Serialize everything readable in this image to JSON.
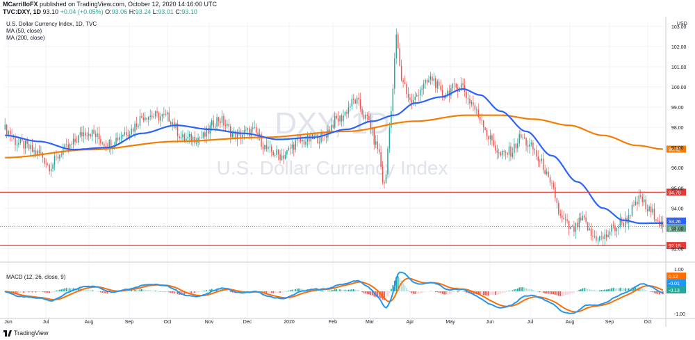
{
  "header": {
    "author": "MCarrilloFX",
    "published": "published on TradingView.com, October 12, 2020 14:16:00 UTC",
    "symbol_line": "TVC:DXY, 1D",
    "last": "93.10",
    "change": "+0.04 (+0.05%)",
    "o_label": "O:",
    "o": "93.06",
    "h_label": "H:",
    "h": "93.24",
    "l_label": "L:",
    "l": "93.01",
    "c_label": "C:",
    "c": "93.10"
  },
  "legend": {
    "title": "U.S. Dollar Currency Index, 1D, TVC",
    "ma50": "MA (50, close)",
    "ma200": "MA (200, close)"
  },
  "watermark": {
    "symbol": "DXY, 1D",
    "name": "U.S. Dollar Currency Index"
  },
  "macd_legend": "MACD (12, 26, close, 9)",
  "footer": {
    "brand": "TradingView"
  },
  "colors": {
    "up": "#26a69a",
    "down": "#ef5350",
    "ma50": "#2962ff",
    "ma200": "#f57c00",
    "level": "#e53935",
    "macd": "#2196f3",
    "signal": "#ff6d00"
  },
  "chart_data": {
    "type": "candlestick",
    "currency": "USD",
    "y_ticks": [
      "103.00",
      "102.00",
      "101.00",
      "100.00",
      "99.00",
      "98.00",
      "97.00",
      "96.00",
      "95.00",
      "94.00",
      "93.00",
      "92.00"
    ],
    "ylim": [
      91.5,
      103.2
    ],
    "x_ticks": [
      "Jun",
      "Jul",
      "Aug",
      "Sep",
      "Oct",
      "Nov",
      "Dec",
      "2020",
      "Feb",
      "Mar",
      "Apr",
      "May",
      "Jun",
      "Jul",
      "Aug",
      "Sep",
      "Oct"
    ],
    "price_anchors": [
      [
        0,
        97.9
      ],
      [
        8,
        97.2
      ],
      [
        20,
        96.7
      ],
      [
        26,
        96.1
      ],
      [
        35,
        96.9
      ],
      [
        48,
        97.8
      ],
      [
        60,
        97.2
      ],
      [
        72,
        97.8
      ],
      [
        82,
        98.6
      ],
      [
        95,
        98.5
      ],
      [
        105,
        97.4
      ],
      [
        115,
        97.5
      ],
      [
        125,
        98.4
      ],
      [
        135,
        97.6
      ],
      [
        145,
        97.8
      ],
      [
        155,
        96.8
      ],
      [
        162,
        96.6
      ],
      [
        172,
        97.3
      ],
      [
        185,
        97.5
      ],
      [
        195,
        98.4
      ],
      [
        205,
        99.3
      ],
      [
        212,
        98.4
      ],
      [
        218,
        97.0
      ],
      [
        222,
        95.1
      ],
      [
        226,
        98.8
      ],
      [
        229,
        102.4
      ],
      [
        232,
        100.4
      ],
      [
        238,
        99.2
      ],
      [
        244,
        100.0
      ],
      [
        250,
        100.4
      ],
      [
        256,
        99.6
      ],
      [
        262,
        99.9
      ],
      [
        267,
        100.1
      ],
      [
        272,
        99.3
      ],
      [
        278,
        98.5
      ],
      [
        284,
        97.4
      ],
      [
        290,
        96.6
      ],
      [
        296,
        96.8
      ],
      [
        302,
        97.5
      ],
      [
        308,
        97.0
      ],
      [
        314,
        96.2
      ],
      [
        320,
        95.0
      ],
      [
        326,
        93.4
      ],
      [
        332,
        92.9
      ],
      [
        338,
        93.4
      ],
      [
        344,
        92.6
      ],
      [
        350,
        92.5
      ],
      [
        356,
        93.0
      ],
      [
        362,
        93.3
      ],
      [
        368,
        94.0
      ],
      [
        372,
        94.5
      ],
      [
        376,
        93.9
      ],
      [
        380,
        93.7
      ],
      [
        385,
        93.1
      ]
    ],
    "ma50_anchors": [
      [
        0,
        97.6
      ],
      [
        20,
        97.3
      ],
      [
        40,
        96.9
      ],
      [
        60,
        97.0
      ],
      [
        80,
        97.7
      ],
      [
        100,
        98.1
      ],
      [
        120,
        97.9
      ],
      [
        140,
        97.7
      ],
      [
        160,
        97.4
      ],
      [
        180,
        97.5
      ],
      [
        200,
        97.9
      ],
      [
        215,
        98.3
      ],
      [
        228,
        98.6
      ],
      [
        240,
        99.2
      ],
      [
        255,
        99.5
      ],
      [
        268,
        99.9
      ],
      [
        278,
        99.6
      ],
      [
        290,
        98.8
      ],
      [
        305,
        97.8
      ],
      [
        320,
        96.6
      ],
      [
        335,
        95.3
      ],
      [
        350,
        94.0
      ],
      [
        362,
        93.4
      ],
      [
        372,
        93.25
      ],
      [
        385,
        93.26
      ]
    ],
    "ma200_anchors": [
      [
        0,
        96.5
      ],
      [
        50,
        96.9
      ],
      [
        100,
        97.3
      ],
      [
        150,
        97.5
      ],
      [
        200,
        97.8
      ],
      [
        240,
        98.3
      ],
      [
        270,
        98.6
      ],
      [
        290,
        98.6
      ],
      [
        310,
        98.4
      ],
      [
        330,
        98.1
      ],
      [
        350,
        97.6
      ],
      [
        370,
        97.1
      ],
      [
        385,
        96.92
      ]
    ],
    "levels": [
      {
        "value": 94.79,
        "label": "94.79"
      },
      {
        "value": 92.15,
        "label": "92.15"
      }
    ],
    "price_labels": [
      {
        "value": 96.92,
        "text": "96.92",
        "role": "ma200"
      },
      {
        "value": 93.26,
        "text": "93.26",
        "role": "ma50"
      },
      {
        "value": 93.1,
        "text": "93.10",
        "role": "last"
      }
    ],
    "last_price": 93.1,
    "macd_panel": {
      "ylim": [
        -1.1,
        1.1
      ],
      "y_ticks": [
        "1.00",
        "-1.00"
      ],
      "labels": [
        {
          "value": 0.12,
          "text": "0.12",
          "role": "signal"
        },
        {
          "value": -0.01,
          "text": "-0.01",
          "role": "macd"
        },
        {
          "value": -0.13,
          "text": "-0.13",
          "role": "histogram"
        }
      ]
    }
  }
}
